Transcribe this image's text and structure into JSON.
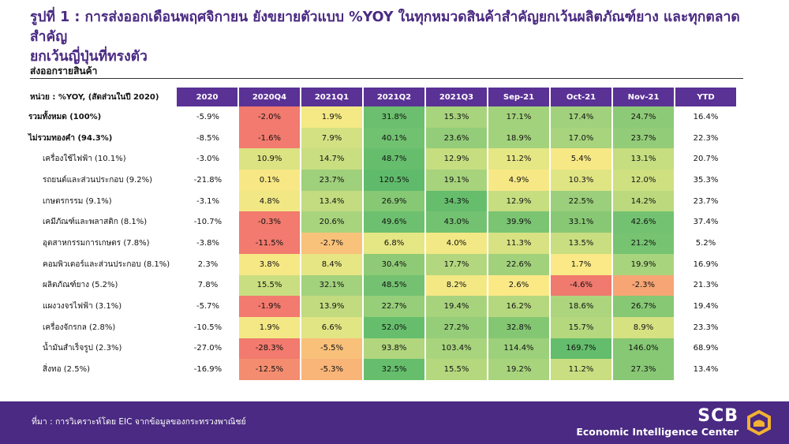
{
  "title_line1": "รูปที่ 1 : การส่งออกเดือนพฤศจิกายน ยังขยายตัวแบบ %YOY ในทุกหมวดสินค้าสำคัญยกเว้นผลิตภัณฑ์ยาง และทุกตลาดสำคัญ",
  "title_line2": "ยกเว้นญี่ปุ่นที่ทรงตัว",
  "section_label": "ส่งออกรายสินค้า",
  "unit_label": "หน่วย : %YOY, (สัดส่วนในปี 2020)",
  "columns": [
    "2020",
    "2020Q4",
    "2021Q1",
    "2021Q2",
    "2021Q3",
    "Sep-21",
    "Oct-21",
    "Nov-21",
    "YTD"
  ],
  "rows": [
    {
      "label": "รวมทั้งหมด (100%)",
      "bold": true,
      "sub": false,
      "values": [
        "-5.9%",
        "-2.0%",
        "1.9%",
        "31.8%",
        "15.3%",
        "17.1%",
        "17.4%",
        "24.7%",
        "16.4%"
      ],
      "colors": [
        "#f27a6e",
        "#f5e985",
        "#6bbf6e",
        "#a8d47d",
        "#a3d27c",
        "#a1d17c",
        "#8dca77"
      ]
    },
    {
      "label": "ไม่รวมทองคำ (94.3%)",
      "bold": true,
      "sub": false,
      "values": [
        "-8.5%",
        "-1.6%",
        "7.9%",
        "40.1%",
        "23.6%",
        "18.9%",
        "17.0%",
        "23.7%",
        "22.3%"
      ],
      "colors": [
        "#f27a6e",
        "#d3e182",
        "#70c170",
        "#93cd79",
        "#a3d27c",
        "#a8d47d",
        "#92cc78"
      ]
    },
    {
      "label": "เครื่องใช้ไฟฟ้า (10.1%)",
      "bold": false,
      "sub": true,
      "values": [
        "-3.0%",
        "10.9%",
        "14.7%",
        "48.7%",
        "12.9%",
        "11.2%",
        "5.4%",
        "13.1%",
        "20.7%"
      ],
      "colors": [
        "#dbe383",
        "#c9de80",
        "#66be6d",
        "#c6dd80",
        "#e5e684",
        "#f7e886",
        "#c6dd80"
      ]
    },
    {
      "label": "รถยนต์และส่วนประกอบ (9.2%)",
      "bold": false,
      "sub": true,
      "values": [
        "-21.8%",
        "0.1%",
        "23.7%",
        "120.5%",
        "19.1%",
        "4.9%",
        "10.3%",
        "12.0%",
        "35.3%"
      ],
      "colors": [
        "#f8e885",
        "#9fd07b",
        "#5fbb6b",
        "#a7d37d",
        "#f7e886",
        "#e0e584",
        "#cfe081"
      ]
    },
    {
      "label": "เกษตรกรรม (9.1%)",
      "bold": false,
      "sub": true,
      "values": [
        "-3.1%",
        "4.8%",
        "13.4%",
        "26.9%",
        "34.3%",
        "12.9%",
        "22.5%",
        "14.2%",
        "23.7%"
      ],
      "colors": [
        "#f1e885",
        "#c3dc7f",
        "#86c874",
        "#66be6d",
        "#c6dd80",
        "#9bcf7b",
        "#bcd97e"
      ]
    },
    {
      "label": "เคมีภัณฑ์และพลาสติก (8.1%)",
      "bold": false,
      "sub": true,
      "values": [
        "-10.7%",
        "-0.3%",
        "20.6%",
        "49.6%",
        "43.0%",
        "39.9%",
        "33.1%",
        "42.6%",
        "37.4%"
      ],
      "colors": [
        "#f27a6e",
        "#a8d47d",
        "#6dc06f",
        "#73c271",
        "#7ac472",
        "#88c875",
        "#73c271"
      ]
    },
    {
      "label": "อุตสาหกรรมการเกษตร (7.8%)",
      "bold": false,
      "sub": true,
      "values": [
        "-3.8%",
        "-11.5%",
        "-2.7%",
        "6.8%",
        "4.0%",
        "11.3%",
        "13.5%",
        "21.2%",
        "5.2%"
      ],
      "colors": [
        "#f27a6e",
        "#f9c27a",
        "#e5e684",
        "#f2e885",
        "#d8e283",
        "#c9de80",
        "#76c371"
      ]
    },
    {
      "label": "คอมพิวเตอร์และส่วนประกอบ (8.1%)",
      "bold": false,
      "sub": true,
      "values": [
        "2.3%",
        "3.8%",
        "8.4%",
        "30.4%",
        "17.7%",
        "22.6%",
        "1.7%",
        "19.9%",
        "16.9%"
      ],
      "colors": [
        "#f7e886",
        "#e6e684",
        "#8fcb77",
        "#b3d77e",
        "#a2d17c",
        "#fae986",
        "#a8d47d"
      ]
    },
    {
      "label": "ผลิตภัณฑ์ยาง (5.2%)",
      "bold": false,
      "sub": true,
      "values": [
        "7.8%",
        "15.5%",
        "32.1%",
        "48.5%",
        "8.2%",
        "2.6%",
        "-4.6%",
        "-2.3%",
        "21.3%"
      ],
      "colors": [
        "#c9de80",
        "#a3d27c",
        "#74c271",
        "#f4e885",
        "#fbe986",
        "#f07a6e",
        "#f7a574"
      ]
    },
    {
      "label": "แผงวงจรไฟฟ้า (3.1%)",
      "bold": false,
      "sub": true,
      "values": [
        "-5.7%",
        "-1.9%",
        "13.9%",
        "22.7%",
        "19.4%",
        "16.2%",
        "18.6%",
        "26.7%",
        "19.4%"
      ],
      "colors": [
        "#f27a6e",
        "#c2db7f",
        "#96ce79",
        "#a7d37d",
        "#b5d87e",
        "#add57d",
        "#86c874"
      ]
    },
    {
      "label": "เครื่องจักรกล (2.8%)",
      "bold": false,
      "sub": true,
      "values": [
        "-10.5%",
        "1.9%",
        "6.6%",
        "52.0%",
        "27.2%",
        "32.8%",
        "15.7%",
        "8.9%",
        "23.3%"
      ],
      "colors": [
        "#f3e885",
        "#e2e584",
        "#66be6d",
        "#95cd79",
        "#84c773",
        "#b5d87e",
        "#d6e182"
      ]
    },
    {
      "label": "น้ำมันสำเร็จรูป (2.3%)",
      "bold": false,
      "sub": true,
      "values": [
        "-27.0%",
        "-28.3%",
        "-5.5%",
        "93.8%",
        "103.4%",
        "114.4%",
        "169.7%",
        "146.0%",
        "68.9%"
      ],
      "colors": [
        "#f27a6e",
        "#f9c07a",
        "#b1d67e",
        "#a8d47d",
        "#9dd07b",
        "#63bd6c",
        "#86c874"
      ]
    },
    {
      "label": "สิ่งทอ (2.5%)",
      "bold": false,
      "sub": true,
      "values": [
        "-16.9%",
        "-12.5%",
        "-5.3%",
        "32.5%",
        "15.5%",
        "19.2%",
        "11.2%",
        "27.3%",
        "13.4%"
      ],
      "colors": [
        "#f48d70",
        "#f9b478",
        "#66be6d",
        "#b5d87e",
        "#a8d47d",
        "#c9de80",
        "#88c875"
      ]
    }
  ],
  "footer_source": "ที่มา : การวิเคราะห์โดย EIC จากข้อมูลของกระทรวงพาณิชย์",
  "logo_brand": "SCB",
  "logo_name": "Economic Intelligence Center",
  "colors": {
    "brand_purple": "#4a2a82",
    "header_purple": "#5a3195"
  }
}
